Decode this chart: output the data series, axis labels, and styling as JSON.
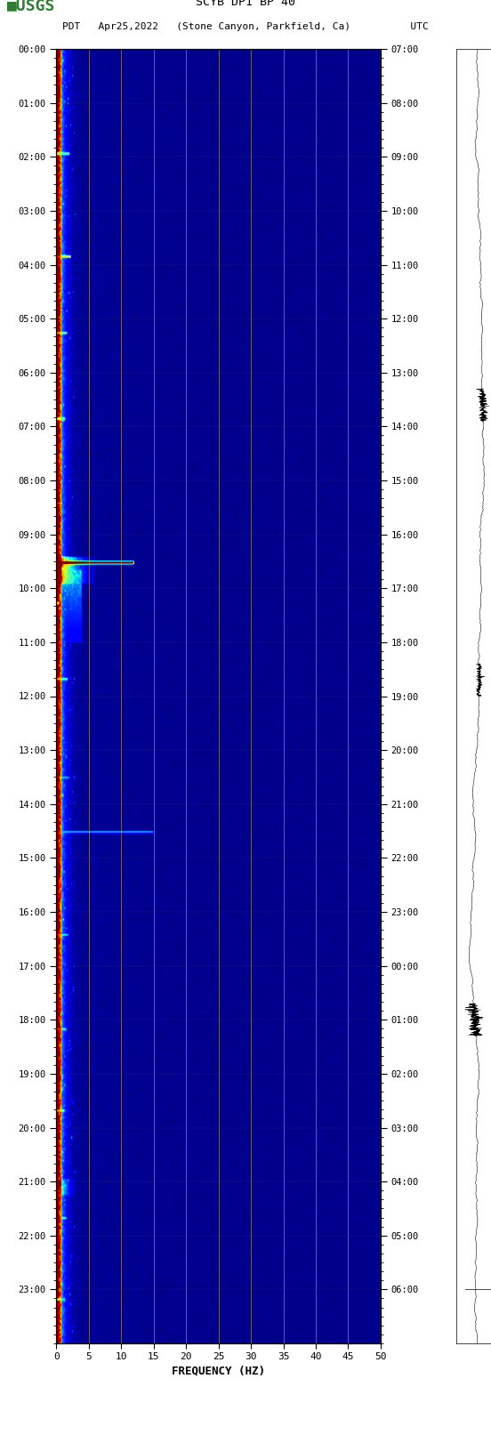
{
  "title_line1": "SCYB DP1 BP 40",
  "title_line2": "PDT   Apr25,2022   (Stone Canyon, Parkfield, Ca)          UTC",
  "xlabel": "FREQUENCY (HZ)",
  "freq_min": 0,
  "freq_max": 50,
  "freq_ticks": [
    0,
    5,
    10,
    15,
    20,
    25,
    30,
    35,
    40,
    45,
    50
  ],
  "left_time_labels": [
    "00:00",
    "01:00",
    "02:00",
    "03:00",
    "04:00",
    "05:00",
    "06:00",
    "07:00",
    "08:00",
    "09:00",
    "10:00",
    "11:00",
    "12:00",
    "13:00",
    "14:00",
    "15:00",
    "16:00",
    "17:00",
    "18:00",
    "19:00",
    "20:00",
    "21:00",
    "22:00",
    "23:00"
  ],
  "right_time_labels": [
    "07:00",
    "08:00",
    "09:00",
    "10:00",
    "11:00",
    "12:00",
    "13:00",
    "14:00",
    "15:00",
    "16:00",
    "17:00",
    "18:00",
    "19:00",
    "20:00",
    "21:00",
    "22:00",
    "23:00",
    "00:00",
    "01:00",
    "02:00",
    "03:00",
    "04:00",
    "05:00",
    "06:00"
  ],
  "background_color": "#ffffff",
  "usgs_text_color": "#2e7d32",
  "figsize": [
    5.52,
    16.13
  ],
  "dpi": 100,
  "vertical_lines_x": [
    5,
    10,
    15,
    20,
    25,
    30,
    35,
    40,
    45
  ],
  "noise_seed": 42
}
